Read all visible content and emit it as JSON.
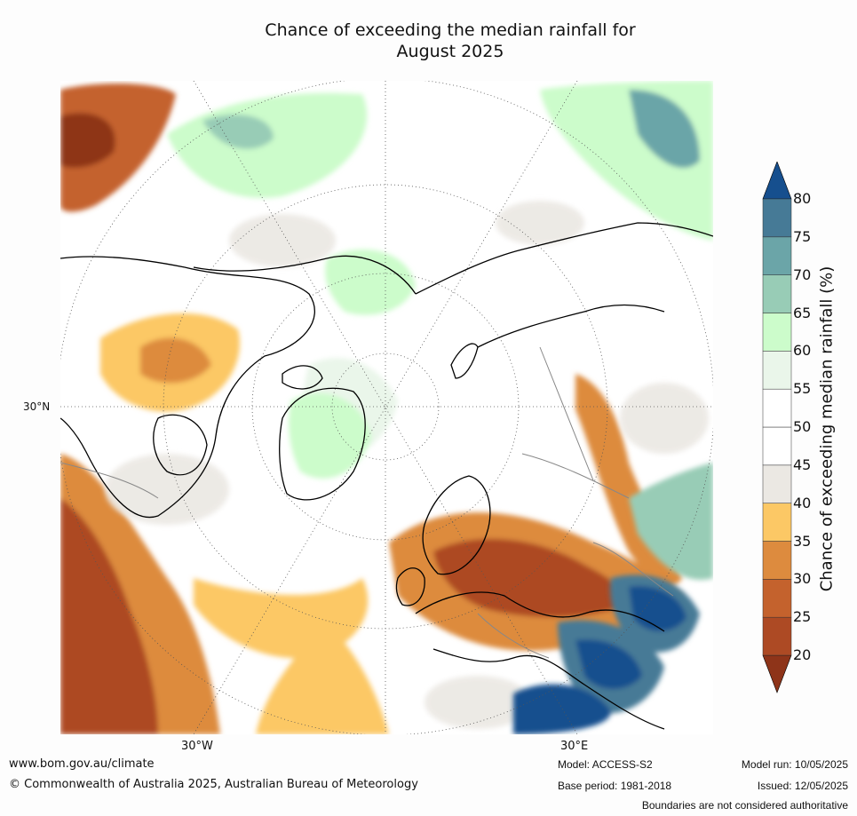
{
  "title": {
    "line1": "Chance of exceeding the median rainfall for",
    "line2": "August 2025"
  },
  "map": {
    "projection": "north polar stereographic",
    "lat_labels": [
      "30°N"
    ],
    "lon_labels": [
      "30°W",
      "30°E"
    ],
    "land_colour_default": "#ffffff",
    "coastline_colour": "#000000",
    "border_colour": "#808080"
  },
  "colorbar": {
    "label": "Chance of exceeding median rainfall (%)",
    "ticks": [
      "20",
      "25",
      "30",
      "35",
      "40",
      "45",
      "50",
      "55",
      "60",
      "65",
      "70",
      "75",
      "80"
    ],
    "bins": [
      {
        "range": "<20",
        "color": "#8e3419"
      },
      {
        "range": "20-25",
        "color": "#ad4a24"
      },
      {
        "range": "25-30",
        "color": "#c4622d"
      },
      {
        "range": "30-35",
        "color": "#dd8b3e"
      },
      {
        "range": "35-40",
        "color": "#fcc865"
      },
      {
        "range": "40-45",
        "color": "#ebe8e3"
      },
      {
        "range": "45-50",
        "color": "#ffffff"
      },
      {
        "range": "50-55",
        "color": "#ffffff"
      },
      {
        "range": "55-60",
        "color": "#eaf6ea"
      },
      {
        "range": "60-65",
        "color": "#ccfccb"
      },
      {
        "range": "65-70",
        "color": "#98ccb6"
      },
      {
        "range": "70-75",
        "color": "#6ba5a8"
      },
      {
        "range": "75-80",
        "color": "#467a96"
      },
      {
        "range": ">80",
        "color": "#164f8e"
      }
    ]
  },
  "footer": {
    "url": "www.bom.gov.au/climate",
    "copyright": "© Commonwealth of Australia 2025, Australian Bureau of Meteorology",
    "model": "Model: ACCESS-S2",
    "base_period": "Base period: 1981-2018",
    "model_run": "Model run: 10/05/2025",
    "issued": "Issued: 12/05/2025",
    "disclaimer": "Boundaries are not considered authoritative"
  }
}
